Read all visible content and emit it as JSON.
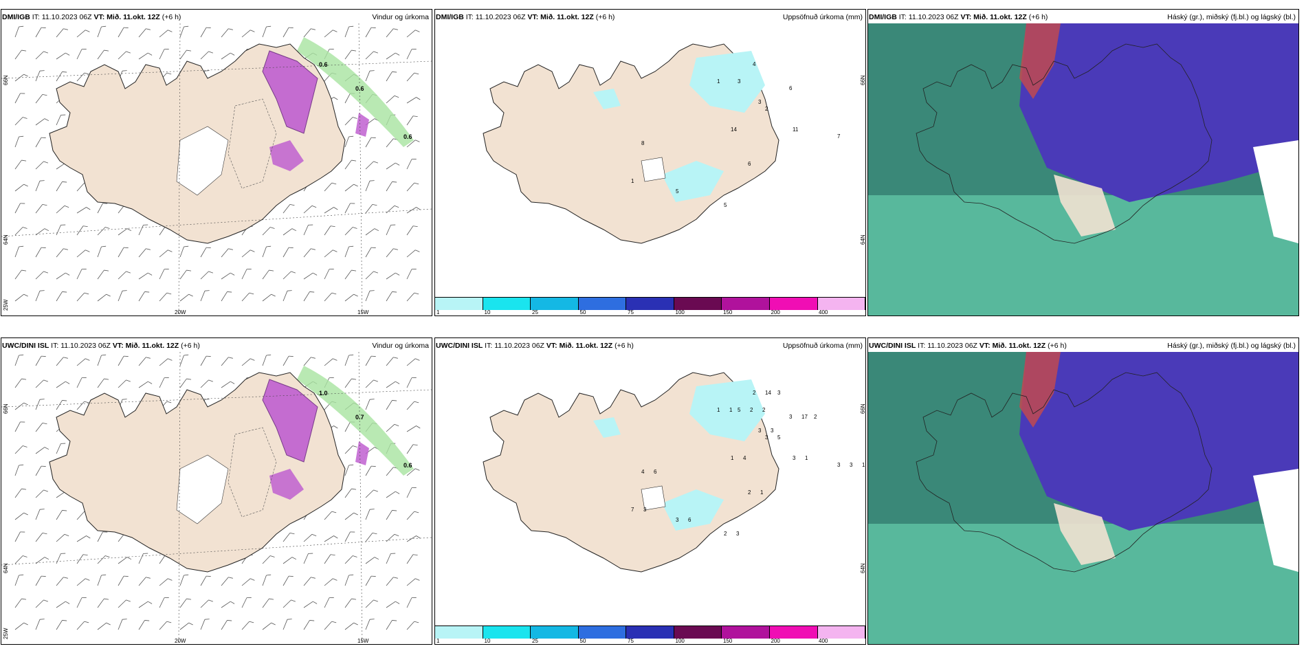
{
  "panels": [
    {
      "model": "DMI/IGB",
      "it": "11.10.2023 06Z",
      "vt": "Mið. 11.okt. 12Z",
      "lead": "(+6 h)",
      "title": "Vindur og úrkoma",
      "lat_labels": [
        "66N",
        "64N"
      ],
      "lon_labels": [
        "20W",
        "15W"
      ],
      "corner_label": "25W",
      "values": [
        "0.6",
        "0.6",
        "0.6"
      ]
    },
    {
      "model": "DMI/IGB",
      "it": "11.10.2023 06Z",
      "vt": "Mið. 11.okt. 12Z",
      "lead": "(+6 h)",
      "title": "Uppsöfnuð úrkoma (mm)",
      "lat_labels": [
        "66N",
        "64N"
      ],
      "values": [
        "4",
        "6",
        "7",
        "3",
        "2",
        "11",
        "14",
        "6",
        "5",
        "8",
        "1",
        "3",
        "1",
        "5"
      ]
    },
    {
      "model": "DMI/IGB",
      "it": "11.10.2023 06Z",
      "vt": "Mið. 11.okt. 12Z",
      "lead": "(+6 h)",
      "title": "Háský (gr.), miðský (fj.bl.) og lágský (bl.)"
    },
    {
      "model": "UWC/DINI ISL",
      "it": "11.10.2023 06Z",
      "vt": "Mið. 11.okt. 12Z",
      "lead": "(+6 h)",
      "title": "Vindur og úrkoma",
      "lat_labels": [
        "66N",
        "64N"
      ],
      "lon_labels": [
        "20W",
        "15W"
      ],
      "corner_label": "25W",
      "values": [
        "1.0",
        "0.7",
        "0.6"
      ]
    },
    {
      "model": "UWC/DINI ISL",
      "it": "11.10.2023 06Z",
      "vt": "Mið. 11.okt. 12Z",
      "lead": "(+6 h)",
      "title": "Uppsöfnuð úrkoma (mm)",
      "lat_labels": [
        "66N",
        "64N"
      ],
      "values": [
        "2",
        "3",
        "3",
        "5",
        "3",
        "3",
        "1",
        "2",
        "2",
        "4",
        "1",
        "3",
        "7",
        "3",
        "14",
        "17",
        "3",
        "2",
        "5",
        "1",
        "4",
        "1",
        "3",
        "6",
        "1",
        "3",
        "3",
        "6",
        "3",
        "2",
        "1",
        "2"
      ]
    },
    {
      "model": "UWC/DINI ISL",
      "it": "11.10.2023 06Z",
      "vt": "Mið. 11.okt. 12Z",
      "lead": "(+6 h)",
      "title": "Háský (gr.), miðský (fj.bl.) og lágský (bl.)"
    }
  ],
  "legend": {
    "ticks": [
      "1",
      "10",
      "25",
      "50",
      "75",
      "100",
      "150",
      "200",
      "400"
    ],
    "colors": [
      "#b8f4f6",
      "#1ae4ee",
      "#14b8e4",
      "#2e6ee0",
      "#2a30b4",
      "#6a0a52",
      "#b0129c",
      "#f00eb4",
      "#f4b4f0"
    ]
  },
  "colors": {
    "land": "#f2e2d2",
    "precip": "#c060d0",
    "cloud_high": "#4a3ab8",
    "cloud_mid": "#3a8878",
    "cloud_low": "#58b89c",
    "green": "#a8e4a0"
  }
}
